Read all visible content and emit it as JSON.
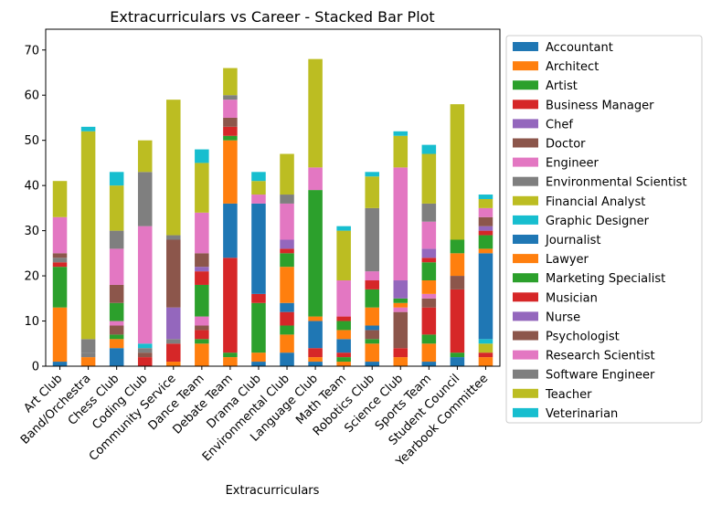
{
  "chart_data": {
    "type": "bar",
    "stacked": true,
    "title": "Extracurriculars vs Career - Stacked Bar Plot",
    "xlabel": "Extracurriculars",
    "ylabel": "",
    "ylim": [
      0,
      74.6
    ],
    "yticks": [
      0,
      10,
      20,
      30,
      40,
      50,
      60,
      70
    ],
    "grid": false,
    "legend_position": "right, outside",
    "categories": [
      "Art Club",
      "Band/Orchestra",
      "Chess Club",
      "Coding Club",
      "Community Service",
      "Dance Team",
      "Debate Team",
      "Drama Club",
      "Environmental Club",
      "Language Club",
      "Math Team",
      "Robotics Club",
      "Science Club",
      "Sports Team",
      "Student Council",
      "Yearbook Committee"
    ],
    "series": [
      {
        "name": "Accountant",
        "color": "#1f77b4",
        "values": [
          1,
          0,
          4,
          0,
          0,
          0,
          0,
          1,
          3,
          1,
          0,
          1,
          0,
          1,
          2,
          0
        ]
      },
      {
        "name": "Architect",
        "color": "#ff7f0e",
        "values": [
          12,
          2,
          2,
          0,
          1,
          5,
          2,
          2,
          4,
          1,
          1,
          4,
          2,
          4,
          0,
          2
        ]
      },
      {
        "name": "Artist",
        "color": "#2ca02c",
        "values": [
          9,
          0,
          1,
          0,
          0,
          1,
          1,
          11,
          2,
          0,
          1,
          1,
          0,
          2,
          1,
          0
        ]
      },
      {
        "name": "Business Manager",
        "color": "#d62728",
        "values": [
          1,
          0,
          0,
          2,
          4,
          2,
          21,
          2,
          3,
          2,
          1,
          0,
          2,
          6,
          14,
          1
        ]
      },
      {
        "name": "Chef",
        "color": "#9467bd",
        "values": [
          0,
          0,
          0,
          0,
          0,
          0,
          0,
          0,
          0,
          0,
          0,
          0,
          0,
          0,
          0,
          0
        ]
      },
      {
        "name": "Doctor",
        "color": "#8c564b",
        "values": [
          0,
          0,
          2,
          1,
          0,
          1,
          0,
          0,
          0,
          0,
          0,
          2,
          8,
          2,
          3,
          0
        ]
      },
      {
        "name": "Engineer",
        "color": "#e377c2",
        "values": [
          0,
          0,
          1,
          0,
          0,
          2,
          0,
          0,
          0,
          0,
          0,
          0,
          1,
          1,
          0,
          0
        ]
      },
      {
        "name": "Environmental Scientist",
        "color": "#7f7f7f",
        "values": [
          1,
          1,
          0,
          1,
          1,
          0,
          0,
          0,
          0,
          0,
          0,
          0,
          0,
          0,
          0,
          0
        ]
      },
      {
        "name": "Financial Analyst",
        "color": "#bcbd22",
        "values": [
          0,
          0,
          0,
          0,
          0,
          0,
          0,
          0,
          0,
          0,
          0,
          0,
          0,
          0,
          0,
          2
        ]
      },
      {
        "name": "Graphic Designer",
        "color": "#17becf",
        "values": [
          0,
          0,
          0,
          1,
          0,
          0,
          0,
          0,
          0,
          0,
          0,
          0,
          0,
          0,
          0,
          1
        ]
      },
      {
        "name": "Journalist",
        "color": "#1f77b4",
        "values": [
          0,
          0,
          0,
          0,
          0,
          0,
          12,
          20,
          2,
          6,
          3,
          1,
          0,
          0,
          0,
          19
        ]
      },
      {
        "name": "Lawyer",
        "color": "#ff7f0e",
        "values": [
          0,
          0,
          0,
          0,
          0,
          0,
          14,
          0,
          8,
          1,
          2,
          4,
          1,
          3,
          5,
          1
        ]
      },
      {
        "name": "Marketing Specialist",
        "color": "#2ca02c",
        "values": [
          0,
          0,
          4,
          0,
          0,
          7,
          1,
          0,
          3,
          28,
          2,
          4,
          1,
          4,
          3,
          3
        ]
      },
      {
        "name": "Musician",
        "color": "#d62728",
        "values": [
          0,
          0,
          0,
          0,
          0,
          3,
          2,
          0,
          1,
          0,
          1,
          2,
          0,
          1,
          0,
          1
        ]
      },
      {
        "name": "Nurse",
        "color": "#9467bd",
        "values": [
          0,
          0,
          0,
          0,
          7,
          1,
          0,
          0,
          2,
          0,
          0,
          0,
          4,
          2,
          0,
          1
        ]
      },
      {
        "name": "Psychologist",
        "color": "#8c564b",
        "values": [
          1,
          0,
          4,
          0,
          15,
          3,
          2,
          0,
          0,
          0,
          0,
          0,
          0,
          0,
          0,
          2
        ]
      },
      {
        "name": "Research Scientist",
        "color": "#e377c2",
        "values": [
          8,
          0,
          8,
          26,
          0,
          9,
          4,
          2,
          8,
          5,
          8,
          2,
          25,
          6,
          0,
          2
        ]
      },
      {
        "name": "Software Engineer",
        "color": "#7f7f7f",
        "values": [
          0,
          3,
          4,
          12,
          1,
          0,
          1,
          0,
          2,
          0,
          0,
          14,
          0,
          4,
          0,
          0
        ]
      },
      {
        "name": "Teacher",
        "color": "#bcbd22",
        "values": [
          8,
          46,
          10,
          7,
          30,
          11,
          6,
          3,
          9,
          24,
          11,
          7,
          7,
          11,
          30,
          2
        ]
      },
      {
        "name": "Veterinarian",
        "color": "#17becf",
        "values": [
          0,
          1,
          3,
          0,
          0,
          3,
          0,
          2,
          0,
          0,
          1,
          1,
          1,
          2,
          0,
          1
        ]
      }
    ]
  }
}
